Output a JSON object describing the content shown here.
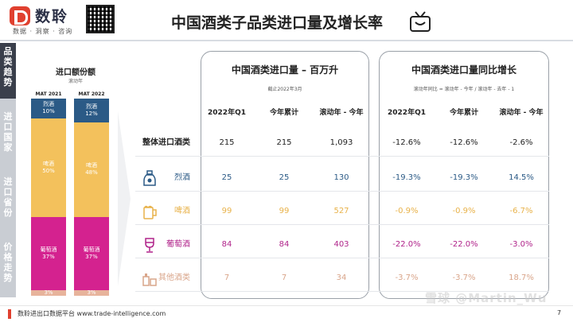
{
  "header": {
    "brand": "数聆",
    "slogan": "数据 · 洞察 · 咨询",
    "title": "中国酒类子品类进口量及增长率"
  },
  "vnav": {
    "items": [
      "品类趋势",
      "进口国家",
      "进口省份",
      "价格走势"
    ]
  },
  "mat": {
    "title": "进口额份额",
    "note": "滚动年",
    "bars": [
      {
        "label": "MAT 2021",
        "segments": [
          {
            "name": "烈酒",
            "pct": "10%",
            "share": 10
          },
          {
            "name": "啤酒",
            "pct": "50%",
            "share": 50
          },
          {
            "name": "葡萄酒",
            "pct": "37%",
            "share": 37
          },
          {
            "name": "",
            "pct": "3%",
            "share": 3
          }
        ]
      },
      {
        "label": "MAT 2022",
        "segments": [
          {
            "name": "烈酒",
            "pct": "12%",
            "share": 12
          },
          {
            "name": "啤酒",
            "pct": "48%",
            "share": 48
          },
          {
            "name": "葡萄酒",
            "pct": "37%",
            "share": 37
          },
          {
            "name": "",
            "pct": "3%",
            "share": 3
          }
        ]
      }
    ]
  },
  "panel_volume": {
    "title": "中国酒类进口量 – 百万升",
    "note": "截止2022年3月",
    "columns": [
      "2022年Q1",
      "今年累计",
      "滚动年 - 今年"
    ]
  },
  "panel_growth": {
    "title": "中国酒类进口量同比增长",
    "note": "滚动年同比 = 滚动年 - 今年 / 滚动年 - 去年 - 1",
    "columns": [
      "2022年Q1",
      "今年累计",
      "滚动年 - 今年"
    ]
  },
  "rows": [
    {
      "label": "整体进口酒类",
      "color": "#222222",
      "icon": "",
      "volume": [
        "215",
        "215",
        "1,093"
      ],
      "growth": [
        "-12.6%",
        "-12.6%",
        "-2.6%"
      ]
    },
    {
      "label": "烈酒",
      "color": "#2b5a86",
      "icon": "liquor-bottle-icon",
      "volume": [
        "25",
        "25",
        "130"
      ],
      "growth": [
        "-19.3%",
        "-19.3%",
        "14.5%"
      ]
    },
    {
      "label": "啤酒",
      "color": "#e8b24a",
      "icon": "beer-mug-icon",
      "volume": [
        "99",
        "99",
        "527"
      ],
      "growth": [
        "-0.9%",
        "-0.9%",
        "-6.7%"
      ]
    },
    {
      "label": "葡萄酒",
      "color": "#b0238a",
      "icon": "wine-glass-icon",
      "volume": [
        "84",
        "84",
        "403"
      ],
      "growth": [
        "-22.0%",
        "-22.0%",
        "-3.0%"
      ]
    },
    {
      "label": "其他酒类",
      "color": "#d9a58a",
      "icon": "other-drinks-icon",
      "volume": [
        "7",
        "7",
        "34"
      ],
      "growth": [
        "-3.7%",
        "-3.7%",
        "18.7%"
      ]
    }
  ],
  "segment_colors": [
    "#2b5a86",
    "#f3c15c",
    "#d4228f",
    "#e7b39b"
  ],
  "footer": {
    "text": "数聆进出口数据平台 www.trade-intelligence.com",
    "page": "7"
  },
  "watermark": "雪球 @Martin_Wu",
  "chart_data": {
    "type": "bar",
    "categories": [
      "MAT 2021",
      "MAT 2022"
    ],
    "series": [
      {
        "name": "烈酒",
        "values": [
          10,
          12
        ]
      },
      {
        "name": "啤酒",
        "values": [
          50,
          48
        ]
      },
      {
        "name": "葡萄酒",
        "values": [
          37,
          37
        ]
      },
      {
        "values": [
          3,
          3
        ]
      }
    ],
    "title": "进口额份额",
    "xlabel": "",
    "ylabel": "",
    "ylim": [
      0,
      100
    ]
  }
}
